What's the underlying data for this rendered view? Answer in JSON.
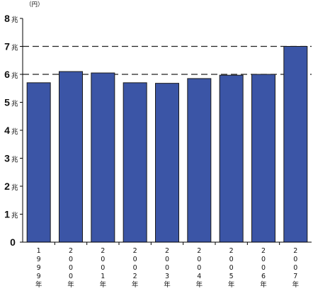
{
  "chart_data": {
    "type": "bar",
    "unit_label": "（円）",
    "tick_unit": "兆",
    "y_ticks": [
      0,
      1,
      2,
      3,
      4,
      5,
      6,
      7,
      8
    ],
    "ylim": [
      0,
      8
    ],
    "categories": [
      "1999年",
      "2000年",
      "2001年",
      "2002年",
      "2003年",
      "2004年",
      "2005年",
      "2006年",
      "2007年"
    ],
    "values": [
      5.7,
      6.1,
      6.05,
      5.7,
      5.68,
      5.85,
      5.97,
      6.0,
      7.0
    ],
    "reference_lines": [
      6,
      7
    ],
    "bar_color": "#3b55a6",
    "bar_edge_color": "#1a1a1a",
    "grid": false
  }
}
